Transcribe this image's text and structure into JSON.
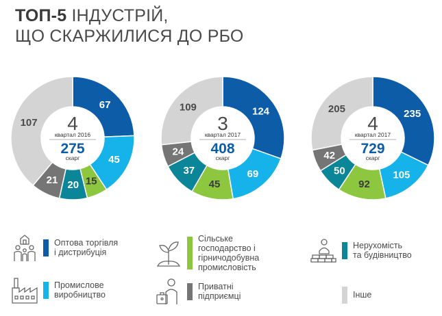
{
  "title": {
    "strong": "ТОП-5",
    "rest": " ІНДУСТРІЙ,",
    "line2": "ЩО СКАРЖИЛИСЯ ДО РБО"
  },
  "colors": {
    "wholesale": "#0c5ca8",
    "manufacturing": "#16b2ea",
    "agriculture": "#8dc63f",
    "realestate": "#0b8598",
    "private": "#757575",
    "other": "#d4d4d4"
  },
  "chart_data": [
    {
      "type": "pie",
      "variant": "donut",
      "center": {
        "big": "4",
        "period": "квартал 2016",
        "total": "275",
        "unit": "скарг"
      },
      "slices": [
        {
          "key": "wholesale",
          "value": 67
        },
        {
          "key": "manufacturing",
          "value": 45
        },
        {
          "key": "agriculture",
          "value": 15
        },
        {
          "key": "realestate",
          "value": 20
        },
        {
          "key": "private",
          "value": 21
        },
        {
          "key": "other",
          "value": 107
        }
      ]
    },
    {
      "type": "pie",
      "variant": "donut",
      "center": {
        "big": "3",
        "period": "квартал 2017",
        "total": "408",
        "unit": "скарг"
      },
      "slices": [
        {
          "key": "wholesale",
          "value": 124
        },
        {
          "key": "manufacturing",
          "value": 69
        },
        {
          "key": "agriculture",
          "value": 45
        },
        {
          "key": "realestate",
          "value": 37
        },
        {
          "key": "private",
          "value": 24
        },
        {
          "key": "other",
          "value": 109
        }
      ]
    },
    {
      "type": "pie",
      "variant": "donut",
      "center": {
        "big": "4",
        "period": "квартал 2017",
        "total": "729",
        "unit": "скарг"
      },
      "slices": [
        {
          "key": "wholesale",
          "value": 235
        },
        {
          "key": "manufacturing",
          "value": 105
        },
        {
          "key": "agriculture",
          "value": 92
        },
        {
          "key": "realestate",
          "value": 50
        },
        {
          "key": "private",
          "value": 42
        },
        {
          "key": "other",
          "value": 205
        }
      ]
    }
  ],
  "legend": [
    {
      "key": "wholesale",
      "icon": "family-icon",
      "lines": [
        "Оптова торгівля",
        "і дистрибуція"
      ]
    },
    {
      "key": "agriculture",
      "icon": "sprout-icon",
      "lines": [
        "Сільське",
        "господарство і",
        "гірничодобувна",
        "промисловість"
      ]
    },
    {
      "key": "realestate",
      "icon": "builder-icon",
      "lines": [
        "Нерухомість",
        "та будівництво"
      ]
    },
    {
      "key": "manufacturing",
      "icon": "factory-icon",
      "lines": [
        "Промислове",
        "виробництво"
      ]
    },
    {
      "key": "private",
      "icon": "entrepreneur-icon",
      "lines": [
        "Приватні",
        "підприємці"
      ]
    },
    {
      "key": "other",
      "icon": "",
      "lines": [
        "Інше"
      ]
    }
  ]
}
